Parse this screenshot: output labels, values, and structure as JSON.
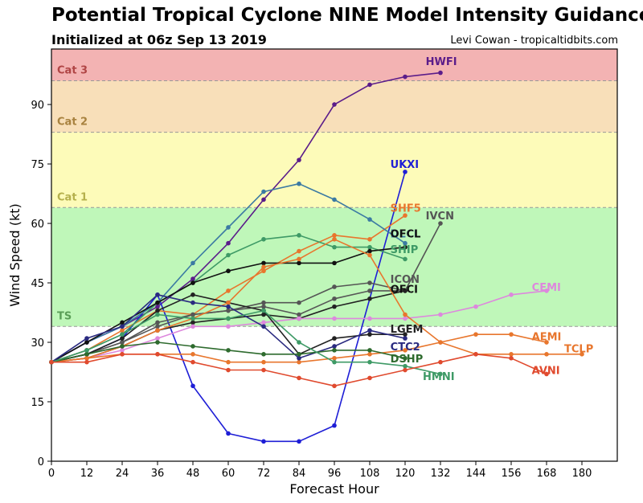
{
  "title": "Potential Tropical Cyclone NINE Model Intensity Guidance",
  "subtitle": "Initialized at 06z Sep 13 2019",
  "credit": "Levi Cowan - tropicaltidbits.com",
  "chart_data": {
    "type": "line",
    "xlabel": "Forecast Hour",
    "ylabel": "Wind Speed (kt)",
    "xlim": [
      0,
      192
    ],
    "ylim": [
      0,
      104
    ],
    "xticks": [
      0,
      12,
      24,
      36,
      48,
      60,
      72,
      84,
      96,
      108,
      120,
      132,
      144,
      156,
      168,
      180
    ],
    "yticks": [
      0,
      15,
      30,
      45,
      60,
      75,
      90
    ],
    "bands": [
      {
        "label": "TS",
        "from": 34,
        "to": 64,
        "color": "#bff7b9",
        "label_color": "#5a9e57"
      },
      {
        "label": "Cat 1",
        "from": 64,
        "to": 83,
        "color": "#fdfbb9",
        "label_color": "#b5b04c"
      },
      {
        "label": "Cat 2",
        "from": 83,
        "to": 96,
        "color": "#f8dfb9",
        "label_color": "#a8823f"
      },
      {
        "label": "Cat 3",
        "from": 96,
        "to": 104,
        "color": "#f3b3b3",
        "label_color": "#b04545"
      }
    ],
    "series": [
      {
        "name": "HWFI",
        "color": "#5b1c8a",
        "x": [
          0,
          12,
          24,
          36,
          48,
          60,
          72,
          84,
          96,
          108,
          120,
          132
        ],
        "y": [
          25,
          30,
          34,
          39,
          46,
          55,
          66,
          76,
          90,
          95,
          97,
          98
        ]
      },
      {
        "name": "UKXI",
        "color": "#1e1ed6",
        "x": [
          0,
          12,
          24,
          36,
          48,
          60,
          72,
          84,
          96,
          120
        ],
        "y": [
          25,
          27,
          31,
          42,
          19,
          7,
          5,
          5,
          9,
          73
        ]
      },
      {
        "name": "SHF5",
        "color": "#e8762d",
        "x": [
          0,
          12,
          24,
          36,
          48,
          60,
          72,
          84,
          96,
          108,
          120
        ],
        "y": [
          25,
          28,
          33,
          38,
          37,
          43,
          48,
          53,
          57,
          56,
          62
        ]
      },
      {
        "name": "IVCN",
        "color": "#555555",
        "x": [
          0,
          12,
          24,
          36,
          48,
          60,
          72,
          84,
          96,
          108,
          120,
          132
        ],
        "y": [
          25,
          27,
          30,
          35,
          37,
          38,
          40,
          40,
          44,
          45,
          43,
          60
        ]
      },
      {
        "name": "DECL",
        "color": "#3b7aa3",
        "x": [
          0,
          12,
          24,
          36,
          48,
          60,
          72,
          84,
          96,
          108,
          120
        ],
        "y": [
          25,
          30,
          34,
          40,
          50,
          59,
          68,
          70,
          66,
          61,
          55
        ]
      },
      {
        "name": "SHIP",
        "color": "#3e9a66",
        "x": [
          0,
          12,
          24,
          36,
          48,
          60,
          72,
          84,
          96,
          108,
          120
        ],
        "y": [
          25,
          28,
          32,
          40,
          45,
          52,
          56,
          57,
          54,
          54,
          51
        ]
      },
      {
        "name": "ICON",
        "color": "#575757",
        "x": [
          0,
          12,
          24,
          36,
          48,
          60,
          72,
          84,
          96,
          108,
          120
        ],
        "y": [
          25,
          27,
          30,
          34,
          37,
          38,
          39,
          37,
          41,
          43,
          43
        ]
      },
      {
        "name": "OFCL",
        "color": "#111111",
        "x": [
          0,
          12,
          24,
          36,
          48,
          60,
          72,
          84,
          96,
          108,
          120
        ],
        "y": [
          25,
          30,
          35,
          40,
          45,
          48,
          50,
          50,
          50,
          53,
          54
        ]
      },
      {
        "name": "OFCI",
        "color": "#222222",
        "x": [
          0,
          12,
          24,
          36,
          48,
          60,
          72,
          84,
          96,
          108,
          120
        ],
        "y": [
          25,
          26,
          29,
          33,
          35,
          36,
          37,
          36,
          39,
          41,
          43
        ]
      },
      {
        "name": "CEMI",
        "color": "#dd88dd",
        "x": [
          0,
          12,
          24,
          36,
          48,
          60,
          72,
          84,
          96,
          108,
          120,
          132,
          144,
          156,
          168
        ],
        "y": [
          25,
          26,
          28,
          31,
          34,
          34,
          35,
          36,
          36,
          36,
          36,
          37,
          39,
          42,
          43
        ]
      },
      {
        "name": "LGEM",
        "color": "#222222",
        "x": [
          0,
          12,
          24,
          36,
          48,
          60,
          72,
          84,
          96,
          108,
          120
        ],
        "y": [
          25,
          27,
          31,
          38,
          42,
          40,
          38,
          27,
          31,
          32,
          32
        ]
      },
      {
        "name": "AEMI",
        "color": "#e8762d",
        "x": [
          0,
          12,
          24,
          36,
          48,
          60,
          72,
          84,
          96,
          108,
          120,
          132,
          144,
          156,
          168
        ],
        "y": [
          25,
          26,
          27,
          27,
          27,
          25,
          25,
          25,
          26,
          27,
          28,
          30,
          32,
          32,
          30
        ]
      },
      {
        "name": "TCLP",
        "color": "#e8762d",
        "x": [
          0,
          12,
          24,
          36,
          48,
          60,
          72,
          84,
          96,
          108,
          120,
          132,
          144,
          156,
          168,
          180
        ],
        "y": [
          25,
          26,
          29,
          33,
          36,
          40,
          49,
          51,
          56,
          52,
          37,
          30,
          27,
          27,
          27,
          27
        ]
      },
      {
        "name": "CTC2",
        "color": "#2a2a80",
        "x": [
          0,
          12,
          24,
          36,
          48,
          60,
          72,
          84,
          96,
          108,
          120
        ],
        "y": [
          25,
          31,
          34,
          42,
          40,
          39,
          34,
          26,
          29,
          33,
          31
        ]
      },
      {
        "name": "DSHP",
        "color": "#2e6b2e",
        "x": [
          0,
          12,
          24,
          36,
          48,
          60,
          72,
          84,
          96,
          108,
          120
        ],
        "y": [
          25,
          27,
          29,
          30,
          29,
          28,
          27,
          27,
          28,
          28,
          26
        ]
      },
      {
        "name": "HMNI",
        "color": "#3e9a66",
        "x": [
          0,
          12,
          24,
          36,
          48,
          60,
          72,
          84,
          96,
          108,
          120,
          132
        ],
        "y": [
          25,
          28,
          32,
          37,
          36,
          36,
          38,
          30,
          25,
          25,
          24,
          22
        ]
      },
      {
        "name": "AVNI",
        "color": "#e04a2e",
        "x": [
          0,
          12,
          24,
          36,
          48,
          60,
          72,
          84,
          96,
          108,
          120,
          132,
          144,
          156,
          168
        ],
        "y": [
          25,
          25,
          27,
          27,
          25,
          23,
          23,
          21,
          19,
          21,
          23,
          25,
          27,
          26,
          22
        ]
      }
    ],
    "labels": [
      {
        "text": "HWFI",
        "x": 127,
        "y": 101,
        "color": "#5b1c8a"
      },
      {
        "text": "UKXI",
        "x": 115,
        "y": 75,
        "color": "#1e1ed6"
      },
      {
        "text": "SHF5",
        "x": 115,
        "y": 64,
        "color": "#e8762d"
      },
      {
        "text": "IVCN",
        "x": 127,
        "y": 62,
        "color": "#555555"
      },
      {
        "text": "DECL",
        "x": 115,
        "y": 57.5,
        "color": "#3b7aa3"
      },
      {
        "text": "OFCL",
        "x": 115,
        "y": 57.5,
        "color": "#111111"
      },
      {
        "text": "SHIP",
        "x": 115,
        "y": 53.5,
        "color": "#3e9a66"
      },
      {
        "text": "ICON",
        "x": 115,
        "y": 46,
        "color": "#575757"
      },
      {
        "text": "OFCI",
        "x": 115,
        "y": 43.5,
        "color": "#111111"
      },
      {
        "text": "CEMI",
        "x": 163,
        "y": 44,
        "color": "#dd88dd"
      },
      {
        "text": "LGEM",
        "x": 115,
        "y": 33.5,
        "color": "#222222"
      },
      {
        "text": "AEMI",
        "x": 163,
        "y": 31.5,
        "color": "#e8762d"
      },
      {
        "text": "CTC2",
        "x": 115,
        "y": 29,
        "color": "#2a2a80"
      },
      {
        "text": "TCLP",
        "x": 174,
        "y": 28.5,
        "color": "#e8762d"
      },
      {
        "text": "DSHP",
        "x": 115,
        "y": 26,
        "color": "#2e6b2e"
      },
      {
        "text": "HMNI",
        "x": 126,
        "y": 21.5,
        "color": "#3e9a66"
      },
      {
        "text": "AVNI",
        "x": 163,
        "y": 23,
        "color": "#e04a2e"
      }
    ]
  }
}
